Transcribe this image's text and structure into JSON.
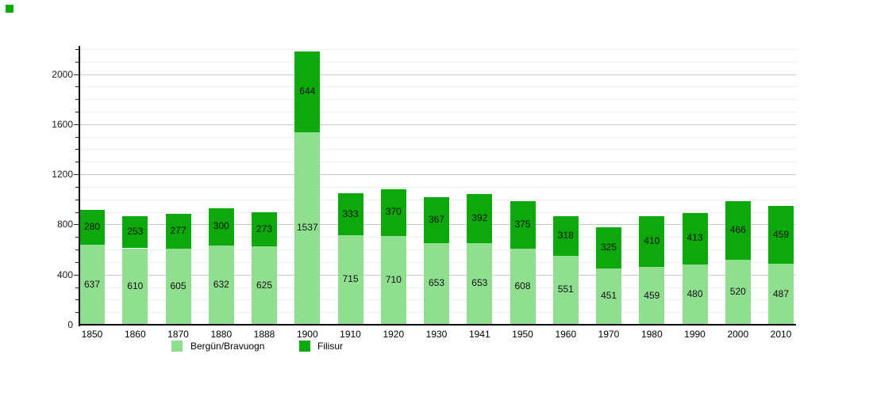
{
  "chart_data": {
    "type": "bar",
    "stacked": true,
    "title": "",
    "xlabel": "",
    "ylabel": "",
    "categories": [
      "1850",
      "1860",
      "1870",
      "1880",
      "1888",
      "1900",
      "1910",
      "1920",
      "1930",
      "1941",
      "1950",
      "1960",
      "1970",
      "1980",
      "1990",
      "2000",
      "2010"
    ],
    "series": [
      {
        "name": "Bergün/Bravuogn",
        "color": "#90DE90",
        "values": [
          637,
          610,
          605,
          632,
          625,
          1537,
          715,
          710,
          653,
          653,
          608,
          551,
          451,
          459,
          480,
          520,
          487
        ]
      },
      {
        "name": "Filisur",
        "color": "#0CA80C",
        "values": [
          280,
          253,
          277,
          300,
          273,
          644,
          333,
          370,
          367,
          392,
          375,
          318,
          325,
          410,
          413,
          466,
          459
        ]
      }
    ],
    "ylim": [
      0,
      2215
    ],
    "y_major_ticks": [
      "0",
      "400",
      "800",
      "1200",
      "1600",
      "2000"
    ],
    "y_minor_step": 100,
    "grid": true,
    "value_labels": "inside-center",
    "legend_position": "bottom"
  },
  "colors": {
    "background": "#ffffff",
    "axis": "#000000",
    "grid_major": "#c8c8c8",
    "grid_minor": "#ececec",
    "text": "#000000",
    "corner_marker": "#0CA80C"
  }
}
